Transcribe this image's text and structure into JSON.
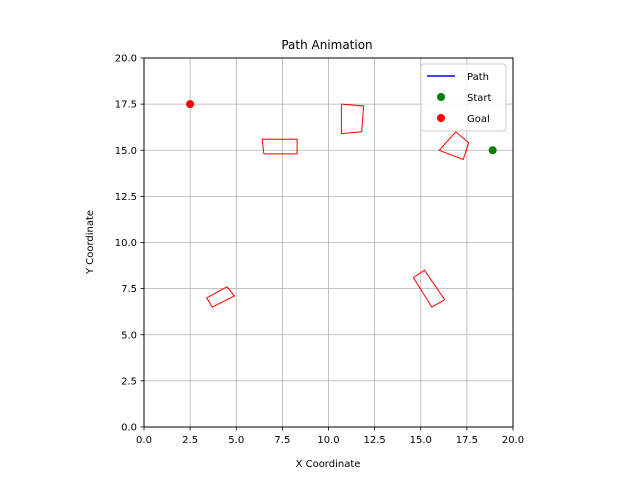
{
  "chart_data": {
    "type": "scatter",
    "title": "Path Animation",
    "xlabel": "X Coordinate",
    "ylabel": "Y Coordinate",
    "xlim": [
      0.0,
      20.0
    ],
    "ylim": [
      0.0,
      20.0
    ],
    "grid": true,
    "x_ticks": [
      "0.0",
      "2.5",
      "5.0",
      "7.5",
      "10.0",
      "12.5",
      "15.0",
      "17.5",
      "20.0"
    ],
    "y_ticks": [
      "0.0",
      "2.5",
      "5.0",
      "7.5",
      "10.0",
      "12.5",
      "15.0",
      "17.5",
      "20.0"
    ],
    "legend_position": "top-right",
    "series": [
      {
        "name": "Path",
        "kind": "line",
        "color": "#0000ff",
        "points": []
      },
      {
        "name": "Start",
        "kind": "marker",
        "color": "#008000",
        "points": [
          [
            18.9,
            15.0
          ]
        ]
      },
      {
        "name": "Goal",
        "kind": "marker",
        "color": "#ff0000",
        "points": [
          [
            2.5,
            17.5
          ]
        ]
      }
    ],
    "obstacles": [
      {
        "color": "#ff0000",
        "corners": [
          [
            6.4,
            15.6
          ],
          [
            8.3,
            15.6
          ],
          [
            8.3,
            14.8
          ],
          [
            6.5,
            14.8
          ]
        ]
      },
      {
        "color": "#ff0000",
        "corners": [
          [
            10.7,
            17.5
          ],
          [
            11.9,
            17.4
          ],
          [
            11.8,
            16.0
          ],
          [
            10.7,
            15.9
          ]
        ]
      },
      {
        "color": "#ff0000",
        "corners": [
          [
            16.9,
            16.0
          ],
          [
            17.6,
            15.4
          ],
          [
            17.3,
            14.5
          ],
          [
            16.0,
            15.0
          ]
        ]
      },
      {
        "color": "#ff0000",
        "corners": [
          [
            3.4,
            7.0
          ],
          [
            4.5,
            7.6
          ],
          [
            4.9,
            7.1
          ],
          [
            3.7,
            6.5
          ]
        ]
      },
      {
        "color": "#ff0000",
        "corners": [
          [
            14.6,
            8.1
          ],
          [
            15.6,
            6.5
          ],
          [
            16.3,
            6.9
          ],
          [
            15.2,
            8.5
          ]
        ]
      }
    ]
  }
}
